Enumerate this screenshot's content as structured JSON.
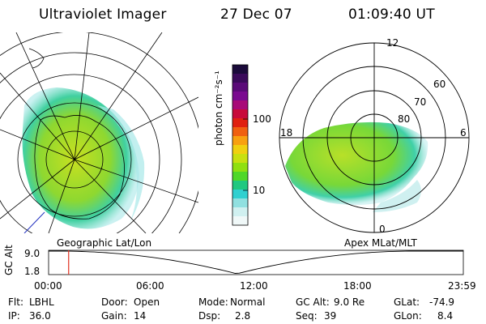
{
  "header": {
    "title": "Ultraviolet Imager",
    "date": "27 Dec 07",
    "time": "01:09:40 UT"
  },
  "colorbar": {
    "unit_label": "photon cm⁻²s⁻¹",
    "ticks": [
      "100",
      "10"
    ],
    "colors": [
      "#1a0a3a",
      "#3a0a5a",
      "#5a0a78",
      "#7a0a90",
      "#a80a78",
      "#c80a3a",
      "#e02010",
      "#f06010",
      "#f8a010",
      "#f0d010",
      "#c8e010",
      "#90e010",
      "#50d828",
      "#20c880",
      "#30d0d0",
      "#90e0e0",
      "#d0f0f0",
      "#f0f8f8"
    ]
  },
  "left_map": {
    "caption": "Geographic Lat/Lon"
  },
  "right_map": {
    "caption": "Apex MLat/MLT",
    "lat_labels": [
      "80",
      "70",
      "60"
    ],
    "mlt_labels": {
      "top": "12",
      "left": "18",
      "right": "6",
      "bottom": "0"
    }
  },
  "timeline": {
    "ylabel": "GC Alt",
    "y_ticks": [
      "9.0",
      "1.8"
    ],
    "x_ticks": [
      "00:00",
      "06:00",
      "12:00",
      "18:00",
      "23:59"
    ],
    "marker_time_hours": 1.16,
    "marker_color": "#e03020"
  },
  "info": {
    "row1": [
      {
        "label": "Flt:",
        "value": "LBHL"
      },
      {
        "label": "Door:",
        "value": "Open"
      },
      {
        "label": "Mode:",
        "value": "Normal"
      },
      {
        "label": "GC Alt:",
        "value": "9.0 Re"
      },
      {
        "label": "GLat:",
        "value": "-74.9"
      }
    ],
    "row2": [
      {
        "label": "IP:",
        "value": "36.0"
      },
      {
        "label": "Gain:",
        "value": "14"
      },
      {
        "label": "Dsp:",
        "value": "2.8"
      },
      {
        "label": "Seq:",
        "value": "39"
      },
      {
        "label": "GLon:",
        "value": "8.4"
      }
    ]
  }
}
